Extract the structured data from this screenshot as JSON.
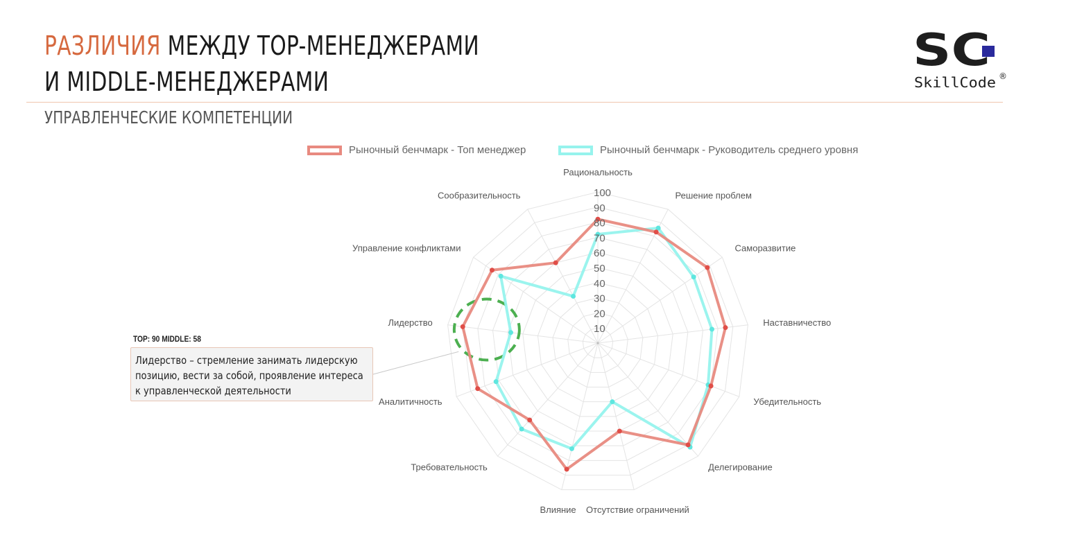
{
  "header": {
    "title_accent": "РАЗЛИЧИЯ",
    "title_rest": " МЕЖДУ TOP-МЕНЕДЖЕРАМИ",
    "title_line2": "И MIDDLE-МЕНЕДЖЕРАМИ",
    "subtitle": "УПРАВЛЕНЧЕСКИЕ КОМПЕТЕНЦИИ"
  },
  "logo": {
    "mark": "SC",
    "name": "SkillCode",
    "registered": "®",
    "colors": {
      "mark": "#1e1e1e",
      "square": "#2a2a9c"
    }
  },
  "callout": {
    "value_line": "TOP: 90 MIDDLE: 58",
    "lines": [
      "Лидерство – стремление занимать лидерскую",
      "позицию, вести за собой, проявление интереса",
      "к управленческой деятельности"
    ],
    "highlight_category": "Лидерство",
    "highlight_color": "#4caf50"
  },
  "chart_data": {
    "type": "radar",
    "categories": [
      "Рациональность",
      "Решение проблем",
      "Саморазвитие",
      "Наставничество",
      "Убедительность",
      "Делегирование",
      "Отсутствие ограничений",
      "Влияние",
      "Требовательность",
      "Аналитичность",
      "Лидерство",
      "Управление конфликтами",
      "Сообразительность"
    ],
    "series": [
      {
        "name": "Рыночный бенчмарк - Топ менеджер",
        "color": "#e88a80",
        "point_color": "#e04e48",
        "values": [
          82,
          83,
          88,
          85,
          80,
          90,
          60,
          86,
          68,
          85,
          90,
          85,
          60
        ]
      },
      {
        "name": "Рыночный бенчмарк - Руководитель среднего уровня",
        "color": "#96f3ed",
        "point_color": "#5ee6df",
        "values": [
          72,
          86,
          77,
          76,
          78,
          92,
          40,
          72,
          76,
          72,
          58,
          78,
          35
        ]
      }
    ],
    "r_ticks": [
      "10",
      "20",
      "30",
      "40",
      "50",
      "60",
      "70",
      "80",
      "90",
      "100"
    ],
    "r_range": [
      0,
      100
    ],
    "legend_position": "top",
    "grid": true
  }
}
